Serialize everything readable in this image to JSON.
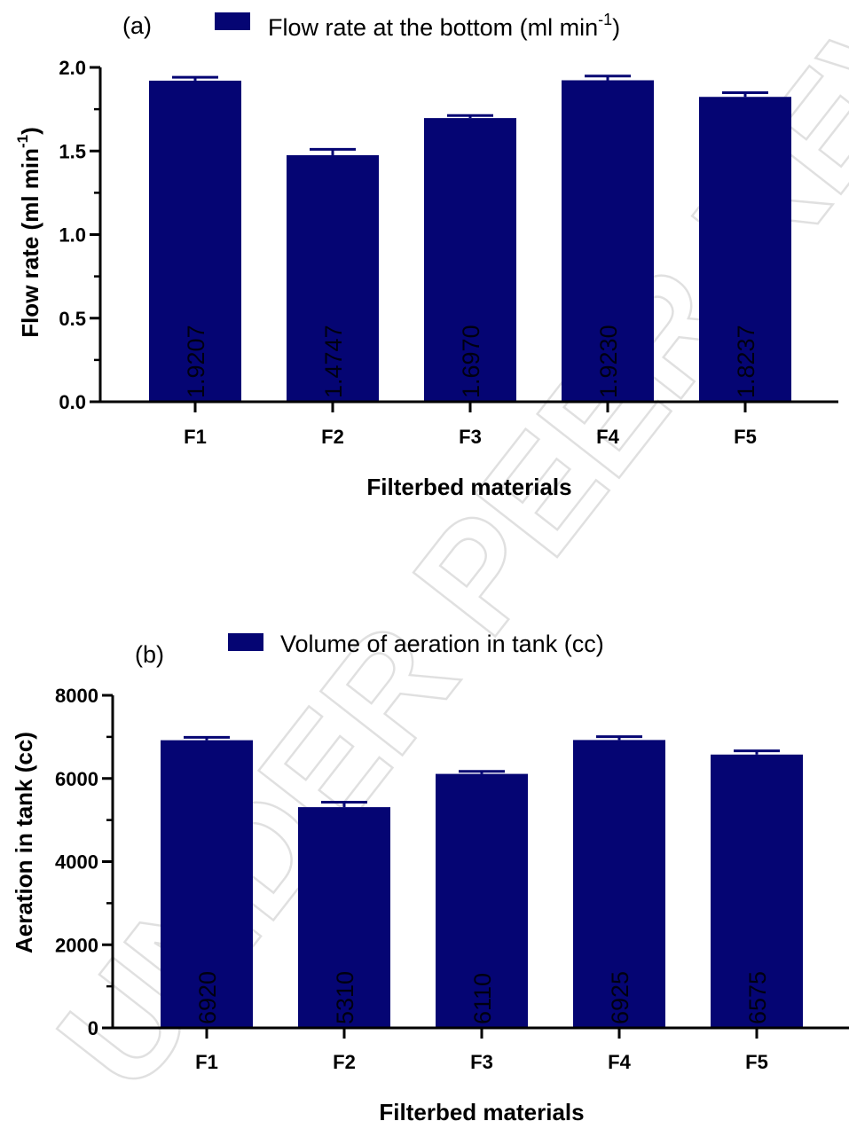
{
  "watermark": "UNDER PEER REVIEW",
  "colors": {
    "bar": "#050573",
    "axis": "#000000"
  },
  "chart_data": [
    {
      "type": "bar",
      "panel_label": "(a)",
      "legend": "Flow rate at the bottom (ml min",
      "legend_sup": "-1",
      "legend_end": ")",
      "xlabel": "Filterbed materials",
      "ylabel": "Flow rate (ml min",
      "ylabel_sup": "-1",
      "ylabel_end": ")",
      "categories": [
        "F1",
        "F2",
        "F3",
        "F4",
        "F5"
      ],
      "values": [
        1.9207,
        1.4747,
        1.697,
        1.923,
        1.8237
      ],
      "errors": [
        0.02,
        0.035,
        0.015,
        0.025,
        0.025
      ],
      "value_labels": [
        "1.9207",
        "1.4747",
        "1.6970",
        "1.9230",
        "1.8237"
      ],
      "ylim": [
        0,
        2.0
      ],
      "yticks": [
        0,
        0.5,
        1.0,
        1.5,
        2.0
      ],
      "ytick_labels": [
        "0.0",
        "0.5",
        "1.0",
        "1.5",
        "2.0"
      ],
      "legend_position": "top"
    },
    {
      "type": "bar",
      "panel_label": "(b)",
      "legend": "Volume of aeration in tank (cc)",
      "legend_sup": "",
      "legend_end": "",
      "xlabel": "Filterbed materials",
      "ylabel": "Aeration in tank (cc)",
      "ylabel_sup": "",
      "ylabel_end": "",
      "categories": [
        "F1",
        "F2",
        "F3",
        "F4",
        "F5"
      ],
      "values": [
        6920,
        5310,
        6110,
        6925,
        6575
      ],
      "errors": [
        70,
        120,
        60,
        80,
        90
      ],
      "value_labels": [
        "6920",
        "5310",
        "6110",
        "6925",
        "6575"
      ],
      "ylim": [
        0,
        8000
      ],
      "yticks": [
        0,
        2000,
        4000,
        6000,
        8000
      ],
      "ytick_labels": [
        "0",
        "2000",
        "4000",
        "6000",
        "8000"
      ],
      "legend_position": "top"
    }
  ]
}
